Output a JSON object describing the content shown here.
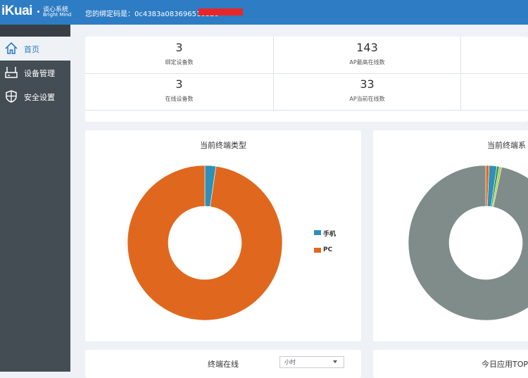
{
  "header": {
    "logo_text": "iKuai",
    "logo_cn": "谈心系统",
    "logo_en": "Bright Mind",
    "bind_code": "您的绑定码是：0c4383a083696510320"
  },
  "sidebar": {
    "items": [
      {
        "label": "首页",
        "icon": "home-icon",
        "active": true
      },
      {
        "label": "设备管理",
        "icon": "router-icon",
        "active": false
      },
      {
        "label": "安全设置",
        "icon": "shield-icon",
        "active": false
      }
    ]
  },
  "stats": {
    "bound_devices": {
      "value": "3",
      "label": "绑定设备数"
    },
    "ap_max_online": {
      "value": "143",
      "label": "AP最高在线数"
    },
    "online_devices": {
      "value": "3",
      "label": "在线设备数"
    },
    "ap_current_online": {
      "value": "33",
      "label": "AP当前在线数"
    }
  },
  "terminal_type_card": {
    "title": "当前终端类型",
    "legend": [
      {
        "name": "手机",
        "color": "#2f8fb7"
      },
      {
        "name": "PC",
        "color": "#e0681e"
      }
    ]
  },
  "terminal_os_card": {
    "title": "当前终端系"
  },
  "online_card": {
    "title": "终端在线",
    "select_value": "小时"
  },
  "top_card": {
    "title": "今日应用TOP"
  },
  "chart_data": [
    {
      "type": "pie",
      "title": "当前终端类型",
      "labels": [
        "手机",
        "PC"
      ],
      "values": [
        2.3,
        97.7
      ],
      "colors": [
        "#2f8fb7",
        "#e0681e"
      ]
    },
    {
      "type": "pie",
      "title": "当前终端系",
      "values": [
        0.7,
        1.6,
        0.5,
        0.5,
        96.7
      ],
      "colors": [
        "#e0681e",
        "#2f8fb7",
        "#2e9a55",
        "#b5c94a",
        "#7f8c8a"
      ]
    }
  ]
}
